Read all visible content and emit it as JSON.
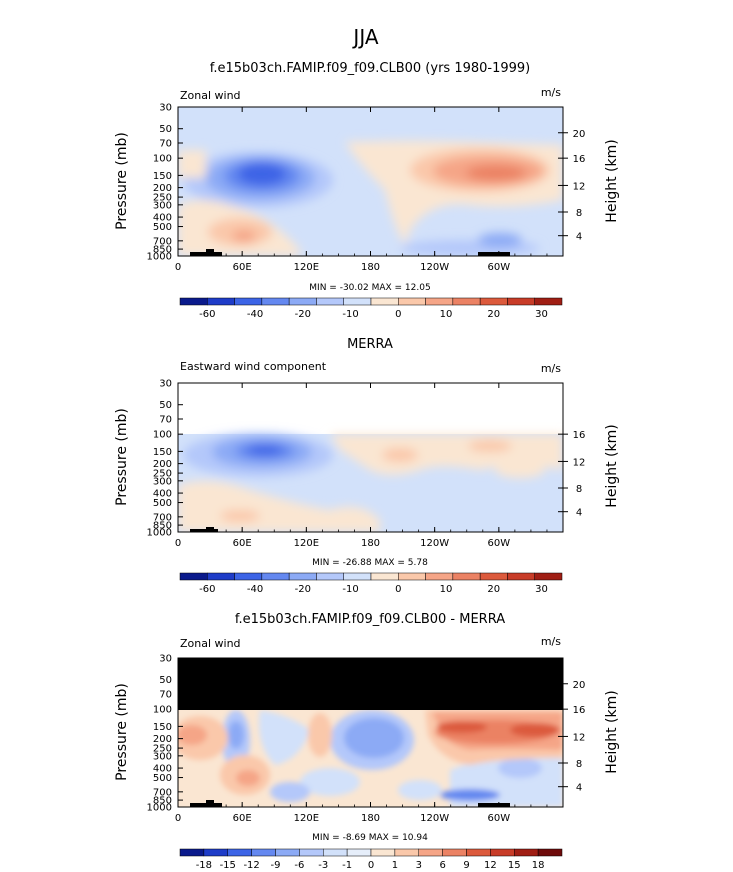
{
  "page": {
    "season": "JJA"
  },
  "chart_data": [
    {
      "type": "heatmap",
      "title": "f.e15b03ch.FAMIP.f09_f09.CLB00 (yrs 1980-1999)",
      "left_label": "Zonal wind",
      "units": "m/s",
      "ylabel": "Pressure (mb)",
      "y2label": "Height (km)",
      "xticks": [
        "0",
        "60E",
        "120E",
        "180",
        "120W",
        "60W"
      ],
      "yticks": [
        "30",
        "50",
        "70",
        "100",
        "150",
        "200",
        "250",
        "300",
        "400",
        "500",
        "700",
        "850",
        "1000"
      ],
      "y2ticks": [
        "20",
        "16",
        "12",
        "8",
        "4"
      ],
      "min_max_text": "MIN = -30.02   MAX =  12.05",
      "colorbar_labels": [
        "-60",
        "-40",
        "-20",
        "-10",
        "0",
        "10",
        "20",
        "30"
      ],
      "colors": [
        "#0a1a8c",
        "#1e3cc8",
        "#3c64e6",
        "#6488f0",
        "#8caaf5",
        "#b4c8fa",
        "#d2e1fa",
        "#fae6d2",
        "#fac8aa",
        "#f5a587",
        "#eb8264",
        "#dc5a3c",
        "#c83c28",
        "#a01e14",
        "#6e0a0a"
      ]
    },
    {
      "type": "heatmap",
      "title": "MERRA",
      "left_label": "Eastward wind component",
      "units": "m/s",
      "ylabel": "Pressure (mb)",
      "y2label": "Height (km)",
      "xticks": [
        "0",
        "60E",
        "120E",
        "180",
        "120W",
        "60W"
      ],
      "yticks": [
        "30",
        "50",
        "70",
        "100",
        "150",
        "200",
        "250",
        "300",
        "400",
        "500",
        "700",
        "850",
        "1000"
      ],
      "y2ticks": [
        "16",
        "12",
        "8",
        "4"
      ],
      "min_max_text": "MIN = -26.88   MAX =   5.78",
      "colorbar_labels": [
        "-60",
        "-40",
        "-20",
        "-10",
        "0",
        "10",
        "20",
        "30"
      ]
    },
    {
      "type": "heatmap",
      "title": "f.e15b03ch.FAMIP.f09_f09.CLB00 - MERRA",
      "left_label": "Zonal wind",
      "units": "m/s",
      "ylabel": "Pressure (mb)",
      "y2label": "Height (km)",
      "xticks": [
        "0",
        "60E",
        "120E",
        "180",
        "120W",
        "60W"
      ],
      "yticks": [
        "30",
        "50",
        "70",
        "100",
        "150",
        "200",
        "250",
        "300",
        "400",
        "500",
        "700",
        "850",
        "1000"
      ],
      "y2ticks": [
        "20",
        "16",
        "12",
        "8",
        "4"
      ],
      "min_max_text": "MIN =  -8.69   MAX =  10.94",
      "colorbar_labels": [
        "-18",
        "-15",
        "-12",
        "-9",
        "-6",
        "-3",
        "-1",
        "0",
        "1",
        "3",
        "6",
        "9",
        "12",
        "15",
        "18"
      ],
      "colors": [
        "#0a1a8c",
        "#1e3cc8",
        "#3c64e6",
        "#6488f0",
        "#8caaf5",
        "#b4c8fa",
        "#d2e1fa",
        "#e6eefa",
        "#fae6d2",
        "#fac8aa",
        "#f5a587",
        "#eb8264",
        "#dc5a3c",
        "#c83c28",
        "#a01e14",
        "#6e0a0a"
      ]
    }
  ]
}
